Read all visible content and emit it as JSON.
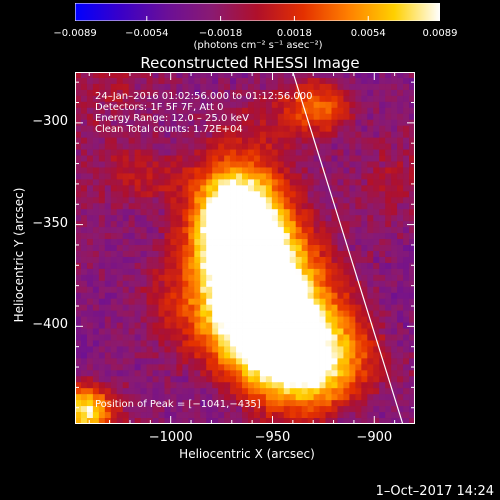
{
  "colorbar": {
    "ticks": [
      {
        "label": "−0.0089",
        "value": -0.0089
      },
      {
        "label": "−0.0054",
        "value": -0.0054
      },
      {
        "label": "−0.0018",
        "value": -0.0018
      },
      {
        "label": "0.0018",
        "value": 0.0018
      },
      {
        "label": "0.0054",
        "value": 0.0054
      },
      {
        "label": "0.0089",
        "value": 0.0089
      }
    ],
    "unit": "(photons cm⁻² s⁻¹ asec⁻²)",
    "range": [
      -0.0089,
      0.0089
    ],
    "colormap": [
      "#0000ff",
      "#3a00c8",
      "#6a0f98",
      "#8a1a72",
      "#b0102a",
      "#e43000",
      "#ff8000",
      "#ffd000",
      "#ffffff"
    ]
  },
  "chart_data": {
    "type": "heatmap",
    "title": "Reconstructed RHESSI Image",
    "xlabel": "Heliocentric X (arcsec)",
    "ylabel": "Heliocentric Y (arcsec)",
    "xlim": [
      -1047,
      -880
    ],
    "ylim": [
      -448,
      -275
    ],
    "xticks": [
      {
        "label": "−1000",
        "value": -1000
      },
      {
        "label": "−950",
        "value": -950
      },
      {
        "label": "−900",
        "value": -900
      }
    ],
    "yticks": [
      {
        "label": "−300",
        "value": -300
      },
      {
        "label": "−350",
        "value": -350
      },
      {
        "label": "−400",
        "value": -400
      }
    ],
    "peak": {
      "x": -1041,
      "y": -435
    },
    "annotations": [
      "24–Jan–2016 01:02:56.000 to 01:12:56.000",
      "Detectors: 1F 5F 7F, Att 0",
      "Energy Range: 12.0 – 25.0 keV",
      "Clean     Total counts: 1.72E+04"
    ],
    "peak_label": "Position of Peak = [−1041,−435]",
    "limb_line": {
      "x1": -940,
      "y1": -275,
      "x2": -886,
      "y2": -448
    }
  },
  "footer": {
    "datestamp": "1–Oct–2017 14:24"
  }
}
